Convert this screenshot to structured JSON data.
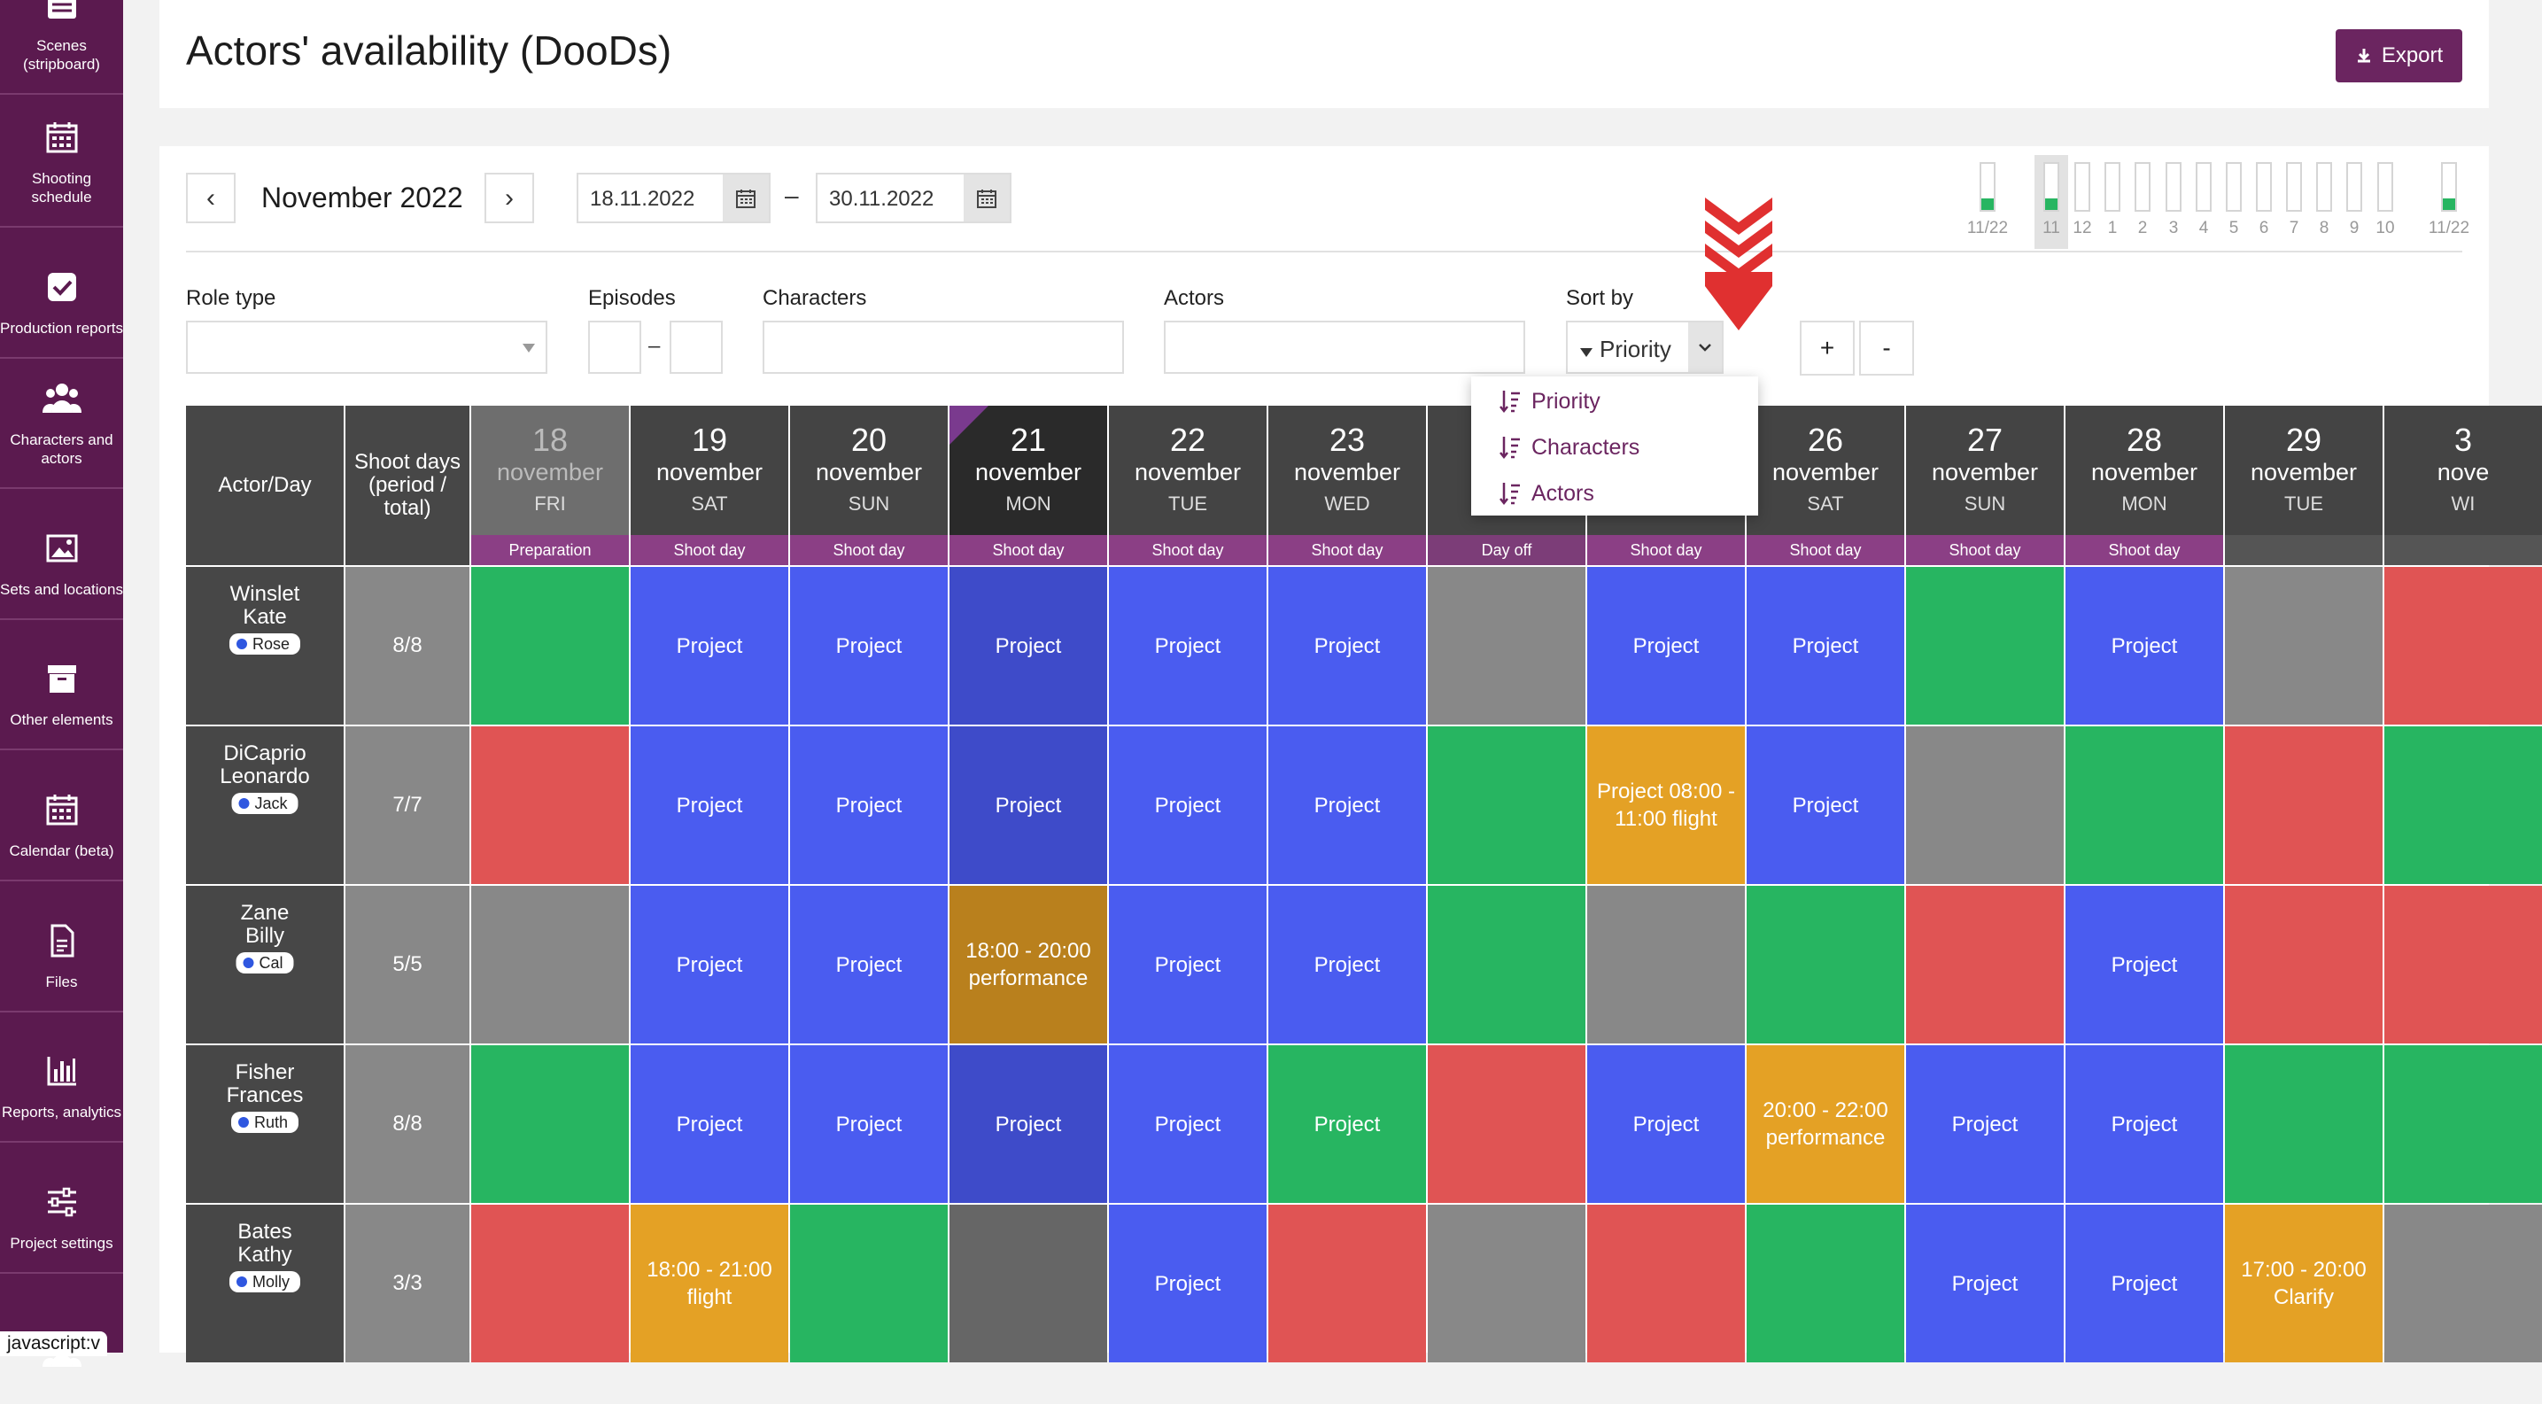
{
  "colors": {
    "available": "#27b561",
    "project": "#4a5cf0",
    "project_mon": "#3e4bc9",
    "unavailable": "#e05454",
    "partial": "#e4a125",
    "partial_mon": "#b9801d",
    "dayoff": "#888888",
    "accent": "#6b2560",
    "sidebar": "#5b1a4f"
  },
  "sidebar": {
    "items": [
      {
        "label": "Scenes (stripboard)",
        "icon": "stripboard-icon"
      },
      {
        "label": "Shooting schedule",
        "icon": "calendar-icon"
      },
      {
        "label": "Production reports",
        "icon": "checkbox-icon"
      },
      {
        "label": "Characters and actors",
        "icon": "people-icon"
      },
      {
        "label": "Sets and locations",
        "icon": "image-icon"
      },
      {
        "label": "Other elements",
        "icon": "box-icon"
      },
      {
        "label": "Calendar (beta)",
        "icon": "calendar-icon"
      },
      {
        "label": "Files",
        "icon": "file-icon"
      },
      {
        "label": "Reports, analytics",
        "icon": "bar-chart-icon"
      },
      {
        "label": "Project settings",
        "icon": "sliders-icon"
      },
      {
        "label": "",
        "icon": "people-icon"
      }
    ],
    "tooltip": "javascript:v"
  },
  "header": {
    "title": "Actors' availability (DooDs)",
    "export_label": "Export"
  },
  "toolbar": {
    "month": "November 2022",
    "prev": "‹",
    "next": "›",
    "date_from": "18.11.2022",
    "date_to": "30.11.2022",
    "dash": "–"
  },
  "mini_timeline": {
    "labels": [
      "11/22",
      "11",
      "12",
      "1",
      "2",
      "3",
      "4",
      "5",
      "6",
      "7",
      "8",
      "9",
      "10",
      "11/22"
    ],
    "filled": [
      true,
      true,
      false,
      false,
      false,
      false,
      false,
      false,
      false,
      false,
      false,
      false,
      false,
      true
    ]
  },
  "filters": {
    "role_type": "Role type",
    "episodes": "Episodes",
    "characters": "Characters",
    "actors": "Actors",
    "sort_by": "Sort by",
    "sort_value": "Priority",
    "plus": "+",
    "minus": "-"
  },
  "sort_menu": [
    "Priority",
    "Characters",
    "Actors"
  ],
  "grid": {
    "actor_header": "Actor/Day",
    "shoot_header": "Shoot days (period / total)",
    "days": [
      {
        "num": "18",
        "month": "november",
        "wd": "FRI",
        "type": "Preparation"
      },
      {
        "num": "19",
        "month": "november",
        "wd": "SAT",
        "type": "Shoot day"
      },
      {
        "num": "20",
        "month": "november",
        "wd": "SUN",
        "type": "Shoot day"
      },
      {
        "num": "21",
        "month": "november",
        "wd": "MON",
        "type": "Shoot day"
      },
      {
        "num": "22",
        "month": "november",
        "wd": "TUE",
        "type": "Shoot day"
      },
      {
        "num": "23",
        "month": "november",
        "wd": "WED",
        "type": "Shoot day"
      },
      {
        "num": "",
        "month": "no",
        "wd": "",
        "type": "Day off"
      },
      {
        "num": "",
        "month": "",
        "wd": "",
        "type": "Shoot day"
      },
      {
        "num": "26",
        "month": "november",
        "wd": "SAT",
        "type": "Shoot day"
      },
      {
        "num": "27",
        "month": "november",
        "wd": "SUN",
        "type": "Shoot day"
      },
      {
        "num": "28",
        "month": "november",
        "wd": "MON",
        "type": "Shoot day"
      },
      {
        "num": "29",
        "month": "november",
        "wd": "TUE",
        "type": ""
      },
      {
        "num": "3",
        "month": "nove",
        "wd": "WI",
        "type": ""
      }
    ],
    "rows": [
      {
        "name": "Winslet Kate",
        "role": "Rose",
        "shoot": "8/8",
        "cells": [
          [
            "g",
            ""
          ],
          [
            "b",
            "Project"
          ],
          [
            "b",
            "Project"
          ],
          [
            "bm",
            "Project"
          ],
          [
            "b",
            "Project"
          ],
          [
            "b",
            "Project"
          ],
          [
            "x",
            ""
          ],
          [
            "b",
            "Project"
          ],
          [
            "b",
            "Project"
          ],
          [
            "g",
            ""
          ],
          [
            "b",
            "Project"
          ],
          [
            "x",
            ""
          ],
          [
            "r",
            ""
          ]
        ]
      },
      {
        "name": "DiCaprio Leonardo",
        "role": "Jack",
        "shoot": "7/7",
        "cells": [
          [
            "r",
            ""
          ],
          [
            "b",
            "Project"
          ],
          [
            "b",
            "Project"
          ],
          [
            "bm",
            "Project"
          ],
          [
            "b",
            "Project"
          ],
          [
            "b",
            "Project"
          ],
          [
            "g",
            ""
          ],
          [
            "o",
            "Project 08:00 - 11:00 flight"
          ],
          [
            "b",
            "Project"
          ],
          [
            "x",
            ""
          ],
          [
            "g",
            ""
          ],
          [
            "r",
            ""
          ],
          [
            "g",
            ""
          ]
        ]
      },
      {
        "name": "Zane Billy",
        "role": "Cal",
        "shoot": "5/5",
        "cells": [
          [
            "x",
            ""
          ],
          [
            "b",
            "Project"
          ],
          [
            "b",
            "Project"
          ],
          [
            "om",
            "18:00 - 20:00 performance"
          ],
          [
            "b",
            "Project"
          ],
          [
            "b",
            "Project"
          ],
          [
            "g",
            ""
          ],
          [
            "x",
            ""
          ],
          [
            "g",
            ""
          ],
          [
            "r",
            ""
          ],
          [
            "b",
            "Project"
          ],
          [
            "r",
            ""
          ],
          [
            "r",
            ""
          ]
        ]
      },
      {
        "name": "Fisher Frances",
        "role": "Ruth",
        "shoot": "8/8",
        "cells": [
          [
            "g",
            ""
          ],
          [
            "b",
            "Project"
          ],
          [
            "b",
            "Project"
          ],
          [
            "bm",
            "Project"
          ],
          [
            "b",
            "Project"
          ],
          [
            "g",
            "Project"
          ],
          [
            "r",
            ""
          ],
          [
            "b",
            "Project"
          ],
          [
            "o",
            "20:00 - 22:00 performance"
          ],
          [
            "b",
            "Project"
          ],
          [
            "b",
            "Project"
          ],
          [
            "g",
            ""
          ],
          [
            "g",
            ""
          ]
        ]
      },
      {
        "name": "Bates Kathy",
        "role": "Molly",
        "shoot": "3/3",
        "cells": [
          [
            "r",
            ""
          ],
          [
            "o",
            "18:00 - 21:00 flight"
          ],
          [
            "g",
            ""
          ],
          [
            "xm",
            ""
          ],
          [
            "b",
            "Project"
          ],
          [
            "r",
            ""
          ],
          [
            "x",
            ""
          ],
          [
            "r",
            ""
          ],
          [
            "g",
            ""
          ],
          [
            "b",
            "Project"
          ],
          [
            "b",
            "Project"
          ],
          [
            "o",
            "17:00 - 20:00 Clarify"
          ],
          [
            "x",
            ""
          ]
        ]
      }
    ]
  }
}
